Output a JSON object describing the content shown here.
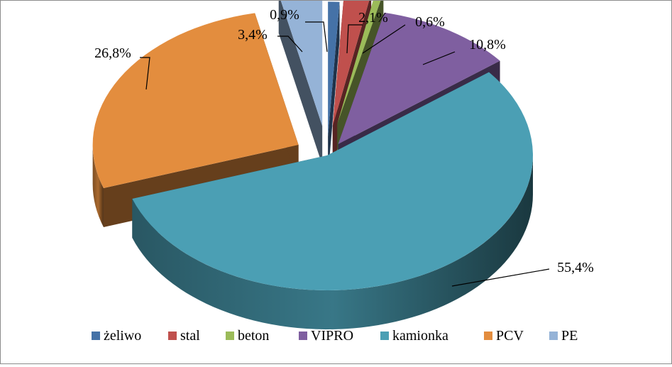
{
  "chart_data": {
    "type": "pie",
    "style": "3d-exploded",
    "title": "",
    "categories": [
      "żeliwo",
      "stal",
      "beton",
      "VIPRO",
      "kamionka",
      "PCV",
      "PE"
    ],
    "values": [
      0.9,
      2.1,
      0.6,
      10.8,
      55.4,
      26.8,
      3.4
    ],
    "labels": [
      "0,9%",
      "2,1%",
      "0,6%",
      "10,8%",
      "55,4%",
      "26,8%",
      "3,4%"
    ],
    "colors": [
      "#4572a7",
      "#c0504d",
      "#9bbb59",
      "#7f5fa0",
      "#4b9fb4",
      "#e38d3e",
      "#95b3d7"
    ],
    "legend": {
      "position": "bottom"
    }
  }
}
